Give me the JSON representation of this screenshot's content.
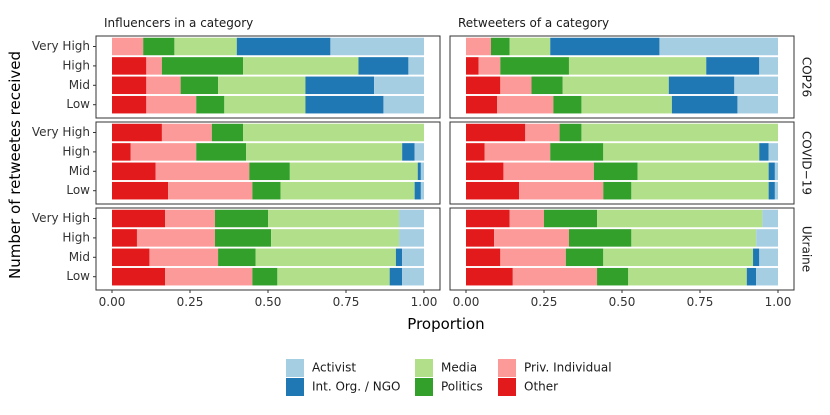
{
  "chart_data": {
    "type": "bar",
    "orientation": "horizontal",
    "stacked": true,
    "xlabel": "Proportion",
    "ylabel": "Number of retweetes received",
    "xlim": [
      0,
      1
    ],
    "x_ticks": [
      "0.00",
      "0.25",
      "0.50",
      "0.75",
      "1.00"
    ],
    "x_tick_values": [
      0,
      0.25,
      0.5,
      0.75,
      1
    ],
    "columns": [
      "Influencers in a category",
      "Retweeters of a category"
    ],
    "rows": [
      "COP26",
      "COVID−19",
      "Ukraine"
    ],
    "categories": [
      "Very High",
      "High",
      "Mid",
      "Low"
    ],
    "stack_order": [
      "Other",
      "Priv. Individual",
      "Politics",
      "Media",
      "Int. Org. / NGO",
      "Activist"
    ],
    "colors": {
      "Activist": "#a6cee3",
      "Int. Org. / NGO": "#1f78b4",
      "Media": "#b2df8a",
      "Politics": "#33a02c",
      "Priv. Individual": "#fb9a99",
      "Other": "#e31a1c"
    },
    "legend": {
      "position": "bottom",
      "columns": [
        [
          "Activist",
          "Int. Org. / NGO"
        ],
        [
          "Media",
          "Politics"
        ],
        [
          "Priv. Individual",
          "Other"
        ]
      ]
    },
    "panels": [
      {
        "row": 0,
        "col": 0,
        "bars": [
          {
            "category": "Very High",
            "values": {
              "Other": 0.0,
              "Priv. Individual": 0.1,
              "Politics": 0.1,
              "Media": 0.2,
              "Int. Org. / NGO": 0.3,
              "Activist": 0.3
            }
          },
          {
            "category": "High",
            "values": {
              "Other": 0.11,
              "Priv. Individual": 0.05,
              "Politics": 0.26,
              "Media": 0.37,
              "Int. Org. / NGO": 0.16,
              "Activist": 0.05
            }
          },
          {
            "category": "Mid",
            "values": {
              "Other": 0.11,
              "Priv. Individual": 0.11,
              "Politics": 0.12,
              "Media": 0.28,
              "Int. Org. / NGO": 0.22,
              "Activist": 0.16
            }
          },
          {
            "category": "Low",
            "values": {
              "Other": 0.11,
              "Priv. Individual": 0.16,
              "Politics": 0.09,
              "Media": 0.26,
              "Int. Org. / NGO": 0.25,
              "Activist": 0.13
            }
          }
        ]
      },
      {
        "row": 0,
        "col": 1,
        "bars": [
          {
            "category": "Very High",
            "values": {
              "Other": 0.0,
              "Priv. Individual": 0.08,
              "Politics": 0.06,
              "Media": 0.13,
              "Int. Org. / NGO": 0.35,
              "Activist": 0.38
            }
          },
          {
            "category": "High",
            "values": {
              "Other": 0.04,
              "Priv. Individual": 0.07,
              "Politics": 0.22,
              "Media": 0.44,
              "Int. Org. / NGO": 0.17,
              "Activist": 0.06
            }
          },
          {
            "category": "Mid",
            "values": {
              "Other": 0.11,
              "Priv. Individual": 0.1,
              "Politics": 0.1,
              "Media": 0.34,
              "Int. Org. / NGO": 0.21,
              "Activist": 0.14
            }
          },
          {
            "category": "Low",
            "values": {
              "Other": 0.1,
              "Priv. Individual": 0.18,
              "Politics": 0.09,
              "Media": 0.29,
              "Int. Org. / NGO": 0.21,
              "Activist": 0.13
            }
          }
        ]
      },
      {
        "row": 1,
        "col": 0,
        "bars": [
          {
            "category": "Very High",
            "values": {
              "Other": 0.16,
              "Priv. Individual": 0.16,
              "Politics": 0.1,
              "Media": 0.58,
              "Int. Org. / NGO": 0.0,
              "Activist": 0.0
            }
          },
          {
            "category": "High",
            "values": {
              "Other": 0.06,
              "Priv. Individual": 0.21,
              "Politics": 0.16,
              "Media": 0.5,
              "Int. Org. / NGO": 0.04,
              "Activist": 0.03
            }
          },
          {
            "category": "Mid",
            "values": {
              "Other": 0.14,
              "Priv. Individual": 0.3,
              "Politics": 0.13,
              "Media": 0.41,
              "Int. Org. / NGO": 0.01,
              "Activist": 0.01
            }
          },
          {
            "category": "Low",
            "values": {
              "Other": 0.18,
              "Priv. Individual": 0.27,
              "Politics": 0.09,
              "Media": 0.43,
              "Int. Org. / NGO": 0.02,
              "Activist": 0.01
            }
          }
        ]
      },
      {
        "row": 1,
        "col": 1,
        "bars": [
          {
            "category": "Very High",
            "values": {
              "Other": 0.19,
              "Priv. Individual": 0.11,
              "Politics": 0.07,
              "Media": 0.63,
              "Int. Org. / NGO": 0.0,
              "Activist": 0.0
            }
          },
          {
            "category": "High",
            "values": {
              "Other": 0.06,
              "Priv. Individual": 0.21,
              "Politics": 0.17,
              "Media": 0.5,
              "Int. Org. / NGO": 0.03,
              "Activist": 0.03
            }
          },
          {
            "category": "Mid",
            "values": {
              "Other": 0.12,
              "Priv. Individual": 0.29,
              "Politics": 0.14,
              "Media": 0.42,
              "Int. Org. / NGO": 0.02,
              "Activist": 0.01
            }
          },
          {
            "category": "Low",
            "values": {
              "Other": 0.17,
              "Priv. Individual": 0.27,
              "Politics": 0.09,
              "Media": 0.44,
              "Int. Org. / NGO": 0.02,
              "Activist": 0.01
            }
          }
        ]
      },
      {
        "row": 2,
        "col": 0,
        "bars": [
          {
            "category": "Very High",
            "values": {
              "Other": 0.17,
              "Priv. Individual": 0.16,
              "Politics": 0.17,
              "Media": 0.42,
              "Int. Org. / NGO": 0.0,
              "Activist": 0.08
            }
          },
          {
            "category": "High",
            "values": {
              "Other": 0.08,
              "Priv. Individual": 0.25,
              "Politics": 0.18,
              "Media": 0.41,
              "Int. Org. / NGO": 0.0,
              "Activist": 0.08
            }
          },
          {
            "category": "Mid",
            "values": {
              "Other": 0.12,
              "Priv. Individual": 0.22,
              "Politics": 0.12,
              "Media": 0.45,
              "Int. Org. / NGO": 0.02,
              "Activist": 0.07
            }
          },
          {
            "category": "Low",
            "values": {
              "Other": 0.17,
              "Priv. Individual": 0.28,
              "Politics": 0.08,
              "Media": 0.36,
              "Int. Org. / NGO": 0.04,
              "Activist": 0.07
            }
          }
        ]
      },
      {
        "row": 2,
        "col": 1,
        "bars": [
          {
            "category": "Very High",
            "values": {
              "Other": 0.14,
              "Priv. Individual": 0.11,
              "Politics": 0.17,
              "Media": 0.53,
              "Int. Org. / NGO": 0.0,
              "Activist": 0.05
            }
          },
          {
            "category": "High",
            "values": {
              "Other": 0.09,
              "Priv. Individual": 0.24,
              "Politics": 0.2,
              "Media": 0.4,
              "Int. Org. / NGO": 0.0,
              "Activist": 0.07
            }
          },
          {
            "category": "Mid",
            "values": {
              "Other": 0.11,
              "Priv. Individual": 0.21,
              "Politics": 0.12,
              "Media": 0.48,
              "Int. Org. / NGO": 0.02,
              "Activist": 0.06
            }
          },
          {
            "category": "Low",
            "values": {
              "Other": 0.15,
              "Priv. Individual": 0.27,
              "Politics": 0.1,
              "Media": 0.38,
              "Int. Org. / NGO": 0.03,
              "Activist": 0.07
            }
          }
        ]
      }
    ]
  }
}
